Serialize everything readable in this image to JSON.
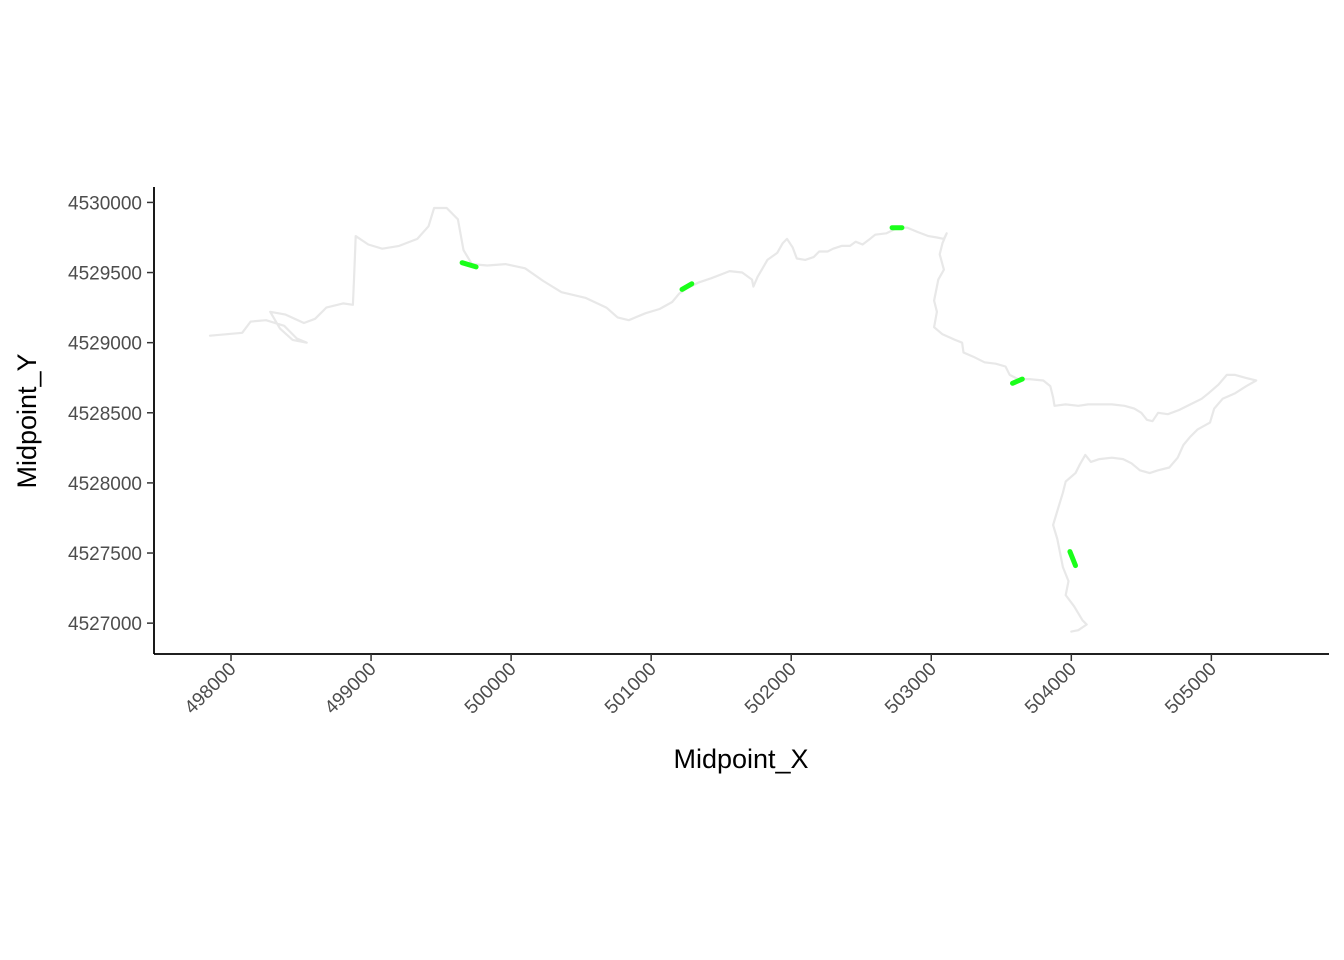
{
  "chart_data": {
    "type": "line",
    "title": "",
    "xlabel": "Midpoint_X",
    "ylabel": "Midpoint_Y",
    "xlim": [
      497450,
      505840
    ],
    "ylim": [
      4526780,
      4530110
    ],
    "x_ticks": [
      498000,
      499000,
      500000,
      501000,
      502000,
      503000,
      504000,
      505000
    ],
    "x_tick_labels": [
      "498000",
      "499000",
      "500000",
      "501000",
      "502000",
      "503000",
      "504000",
      "505000"
    ],
    "y_ticks": [
      4527000,
      4527500,
      4528000,
      4528500,
      4529000,
      4529500,
      4530000
    ],
    "y_tick_labels": [
      "4527000",
      "4527500",
      "4528000",
      "4528500",
      "4529000",
      "4529500",
      "4530000"
    ],
    "grid": false,
    "series": [
      {
        "role": "path",
        "color": "#e8e8e8",
        "points": [
          [
            497850,
            4529050
          ],
          [
            498080,
            4529070
          ],
          [
            498140,
            4529150
          ],
          [
            498250,
            4529160
          ],
          [
            498380,
            4529120
          ],
          [
            498470,
            4529030
          ],
          [
            498540,
            4529000
          ],
          [
            498440,
            4529020
          ],
          [
            498350,
            4529100
          ],
          [
            498280,
            4529220
          ],
          [
            498390,
            4529200
          ],
          [
            498520,
            4529140
          ],
          [
            498600,
            4529170
          ],
          [
            498680,
            4529250
          ],
          [
            498800,
            4529280
          ],
          [
            498870,
            4529270
          ],
          [
            498880,
            4529500
          ],
          [
            498890,
            4529760
          ],
          [
            498980,
            4529700
          ],
          [
            499080,
            4529670
          ],
          [
            499200,
            4529690
          ],
          [
            499330,
            4529740
          ],
          [
            499410,
            4529830
          ],
          [
            499450,
            4529960
          ],
          [
            499540,
            4529960
          ],
          [
            499620,
            4529880
          ],
          [
            499660,
            4529660
          ],
          [
            499720,
            4529560
          ],
          [
            499830,
            4529550
          ],
          [
            499960,
            4529560
          ],
          [
            500100,
            4529530
          ],
          [
            500230,
            4529440
          ],
          [
            500360,
            4529360
          ],
          [
            500530,
            4529320
          ],
          [
            500680,
            4529250
          ],
          [
            500760,
            4529180
          ],
          [
            500840,
            4529160
          ],
          [
            500960,
            4529210
          ],
          [
            501060,
            4529240
          ],
          [
            501150,
            4529290
          ],
          [
            501200,
            4529350
          ],
          [
            501260,
            4529390
          ],
          [
            501340,
            4529430
          ],
          [
            501430,
            4529460
          ],
          [
            501510,
            4529490
          ],
          [
            501560,
            4529510
          ],
          [
            501650,
            4529500
          ],
          [
            501720,
            4529450
          ],
          [
            501730,
            4529400
          ],
          [
            501760,
            4529470
          ],
          [
            501790,
            4529520
          ],
          [
            501830,
            4529590
          ],
          [
            501900,
            4529640
          ],
          [
            501940,
            4529710
          ],
          [
            501970,
            4529740
          ],
          [
            502010,
            4529680
          ],
          [
            502040,
            4529600
          ],
          [
            502100,
            4529590
          ],
          [
            502160,
            4529610
          ],
          [
            502200,
            4529650
          ],
          [
            502260,
            4529650
          ],
          [
            502300,
            4529670
          ],
          [
            502360,
            4529690
          ],
          [
            502420,
            4529690
          ],
          [
            502460,
            4529720
          ],
          [
            502510,
            4529700
          ],
          [
            502550,
            4529730
          ],
          [
            502600,
            4529770
          ],
          [
            502680,
            4529780
          ],
          [
            502760,
            4529820
          ],
          [
            502830,
            4529820
          ],
          [
            502900,
            4529790
          ],
          [
            502980,
            4529760
          ],
          [
            503040,
            4529750
          ],
          [
            503090,
            4529740
          ],
          [
            503110,
            4529780
          ],
          [
            503080,
            4529710
          ],
          [
            503060,
            4529630
          ],
          [
            503090,
            4529520
          ],
          [
            503050,
            4529450
          ],
          [
            503020,
            4529300
          ],
          [
            503040,
            4529220
          ],
          [
            503020,
            4529110
          ],
          [
            503080,
            4529060
          ],
          [
            503170,
            4529020
          ],
          [
            503220,
            4529000
          ],
          [
            503230,
            4528930
          ],
          [
            503300,
            4528900
          ],
          [
            503380,
            4528860
          ],
          [
            503460,
            4528850
          ],
          [
            503530,
            4528830
          ],
          [
            503560,
            4528770
          ],
          [
            503620,
            4528740
          ],
          [
            503700,
            4528740
          ],
          [
            503800,
            4528730
          ],
          [
            503850,
            4528690
          ],
          [
            503870,
            4528610
          ],
          [
            503880,
            4528550
          ],
          [
            503960,
            4528560
          ],
          [
            504050,
            4528550
          ],
          [
            504120,
            4528560
          ],
          [
            504200,
            4528560
          ],
          [
            504290,
            4528560
          ],
          [
            504380,
            4528550
          ],
          [
            504450,
            4528530
          ],
          [
            504500,
            4528500
          ],
          [
            504540,
            4528450
          ],
          [
            504580,
            4528440
          ],
          [
            504620,
            4528500
          ],
          [
            504690,
            4528490
          ],
          [
            504770,
            4528520
          ],
          [
            504850,
            4528560
          ],
          [
            504930,
            4528600
          ],
          [
            504980,
            4528640
          ],
          [
            505050,
            4528700
          ],
          [
            505110,
            4528770
          ],
          [
            505170,
            4528770
          ],
          [
            505240,
            4528750
          ],
          [
            505320,
            4528730
          ],
          [
            505250,
            4528690
          ],
          [
            505170,
            4528640
          ],
          [
            505080,
            4528600
          ],
          [
            505020,
            4528530
          ],
          [
            504990,
            4528430
          ],
          [
            504900,
            4528380
          ],
          [
            504850,
            4528330
          ],
          [
            504800,
            4528270
          ],
          [
            504760,
            4528180
          ],
          [
            504700,
            4528110
          ],
          [
            504620,
            4528090
          ],
          [
            504560,
            4528070
          ],
          [
            504490,
            4528090
          ],
          [
            504430,
            4528140
          ],
          [
            504370,
            4528170
          ],
          [
            504290,
            4528180
          ],
          [
            504200,
            4528170
          ],
          [
            504140,
            4528150
          ],
          [
            504100,
            4528200
          ],
          [
            504060,
            4528130
          ],
          [
            504030,
            4528070
          ],
          [
            503960,
            4528010
          ],
          [
            503940,
            4527930
          ],
          [
            503900,
            4527800
          ],
          [
            503870,
            4527700
          ],
          [
            503900,
            4527600
          ],
          [
            503920,
            4527500
          ],
          [
            503940,
            4527400
          ],
          [
            503980,
            4527300
          ],
          [
            503960,
            4527200
          ],
          [
            504020,
            4527120
          ],
          [
            504080,
            4527020
          ],
          [
            504110,
            4526990
          ],
          [
            504050,
            4526950
          ],
          [
            504000,
            4526940
          ]
        ]
      },
      {
        "role": "segments",
        "color": "#1aff1a",
        "segments": [
          [
            [
              499650,
              4529570
            ],
            [
              499750,
              4529540
            ]
          ],
          [
            [
              501220,
              4529380
            ],
            [
              501290,
              4529420
            ]
          ],
          [
            [
              502720,
              4529820
            ],
            [
              502790,
              4529820
            ]
          ],
          [
            [
              503580,
              4528710
            ],
            [
              503650,
              4528740
            ]
          ],
          [
            [
              503990,
              4527510
            ],
            [
              504030,
              4527410
            ]
          ]
        ]
      }
    ]
  }
}
